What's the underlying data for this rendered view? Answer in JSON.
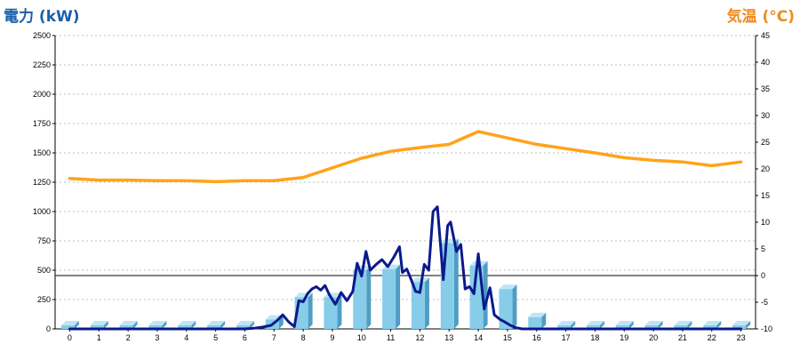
{
  "chart_data": {
    "type": "bar+line",
    "left_axis": {
      "label": "電力 (kW)",
      "range": [
        0,
        2500
      ],
      "ticks": [
        0,
        250,
        500,
        750,
        1000,
        1250,
        1500,
        1750,
        2000,
        2250,
        2500
      ]
    },
    "right_axis": {
      "label": "気温 (°C)",
      "range": [
        -10,
        45
      ],
      "ticks": [
        -10,
        -5,
        0,
        5,
        10,
        15,
        20,
        25,
        30,
        35,
        40,
        45
      ]
    },
    "categories": [
      "0",
      "1",
      "2",
      "3",
      "4",
      "5",
      "6",
      "7",
      "8",
      "9",
      "10",
      "11",
      "12",
      "13",
      "14",
      "15",
      "16",
      "17",
      "18",
      "19",
      "20",
      "21",
      "22",
      "23"
    ],
    "grid": true,
    "reference_line": {
      "axis": "right",
      "value": 0
    },
    "series": [
      {
        "kind": "bar",
        "axis": "left",
        "color": "#87cdea",
        "values": [
          30,
          30,
          30,
          30,
          30,
          30,
          30,
          80,
          270,
          270,
          500,
          510,
          400,
          730,
          540,
          340,
          100,
          30,
          30,
          30,
          30,
          30,
          30,
          30
        ]
      },
      {
        "kind": "line",
        "axis": "left",
        "color": "#0a1a8c",
        "x": [
          0,
          0.5,
          1,
          1.5,
          2,
          2.5,
          3,
          3.5,
          4,
          4.5,
          5,
          5.5,
          6,
          6.3,
          6.6,
          6.9,
          7.1,
          7.3,
          7.5,
          7.7,
          7.85,
          8.0,
          8.15,
          8.3,
          8.45,
          8.6,
          8.75,
          8.9,
          9.1,
          9.3,
          9.5,
          9.7,
          9.85,
          10.0,
          10.15,
          10.3,
          10.5,
          10.7,
          10.9,
          11.1,
          11.3,
          11.4,
          11.55,
          11.7,
          11.85,
          12.0,
          12.15,
          12.3,
          12.45,
          12.6,
          12.8,
          12.95,
          13.05,
          13.25,
          13.4,
          13.55,
          13.7,
          13.85,
          14.0,
          14.2,
          14.4,
          14.55,
          14.75,
          14.9,
          15.1,
          15.3,
          15.5,
          15.7,
          15.9,
          16.1,
          16.3,
          16.5,
          17,
          18,
          19,
          20,
          21,
          22,
          23
        ],
        "values": [
          0,
          0,
          0,
          0,
          0,
          0,
          0,
          0,
          0,
          0,
          0,
          0,
          0,
          5,
          15,
          30,
          70,
          120,
          60,
          20,
          240,
          230,
          300,
          340,
          360,
          330,
          370,
          290,
          210,
          310,
          240,
          320,
          560,
          450,
          660,
          500,
          550,
          590,
          530,
          610,
          700,
          480,
          510,
          420,
          320,
          310,
          550,
          500,
          1000,
          1040,
          420,
          880,
          910,
          660,
          720,
          340,
          360,
          300,
          640,
          170,
          350,
          120,
          80,
          60,
          30,
          10,
          0,
          0,
          0,
          0,
          0,
          0,
          0,
          0,
          0,
          0,
          0,
          0,
          0
        ]
      },
      {
        "kind": "line",
        "axis": "right",
        "color": "#ffa31a",
        "values": [
          18.2,
          17.9,
          17.9,
          17.8,
          17.8,
          17.6,
          17.8,
          17.8,
          18.4,
          20.2,
          22,
          23.3,
          24,
          24.6,
          27,
          25.8,
          24.6,
          23.8,
          23,
          22.1,
          21.6,
          21.3,
          20.6,
          21.3
        ]
      }
    ]
  }
}
